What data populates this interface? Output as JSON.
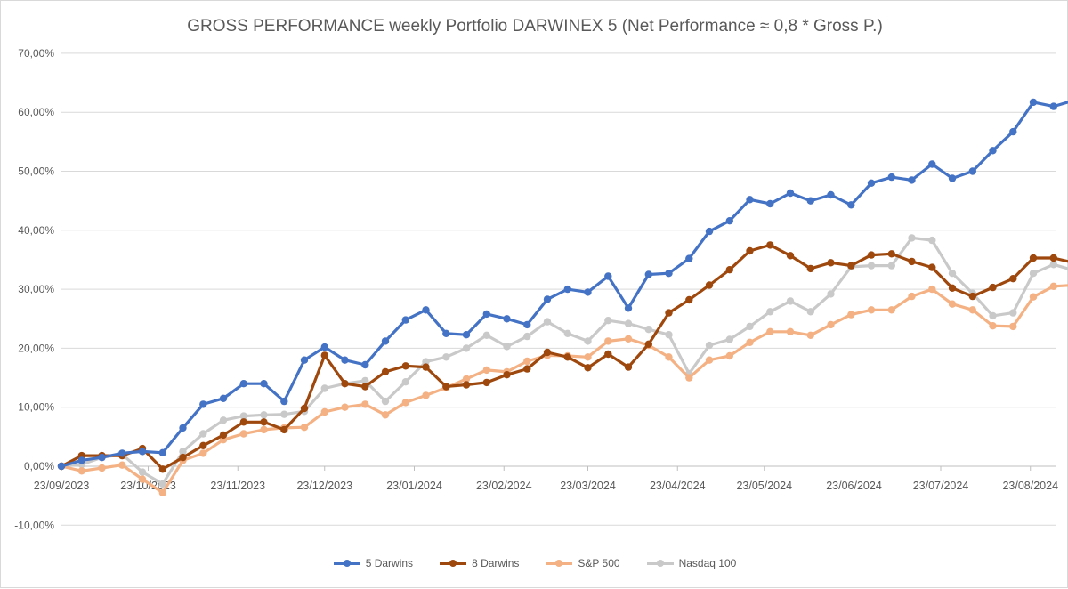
{
  "chart_data": {
    "type": "line",
    "title": "GROSS PERFORMANCE weekly Portfolio DARWINEX 5 (Net Performance ≈ 0,8 * Gross P.)",
    "xlabel": "",
    "ylabel": "",
    "ylim": [
      -0.1,
      0.7
    ],
    "yticks": [
      -0.1,
      0.0,
      0.1,
      0.2,
      0.3,
      0.4,
      0.5,
      0.6,
      0.7
    ],
    "ytick_labels": [
      "-10,00%",
      "0,00%",
      "10,00%",
      "20,00%",
      "30,00%",
      "40,00%",
      "50,00%",
      "60,00%",
      "70,00%"
    ],
    "xtick_labels": [
      "23/09/2023",
      "23/10/2023",
      "23/11/2023",
      "23/12/2023",
      "23/01/2024",
      "23/02/2024",
      "23/03/2024",
      "23/04/2024",
      "23/05/2024",
      "23/06/2024",
      "23/07/2024",
      "23/08/2024"
    ],
    "x_start": "2023-09-23",
    "x_end": "2024-09-01",
    "x_step_days": 7,
    "grid": true,
    "legend_position": "bottom",
    "series": [
      {
        "name": "5 Darwins",
        "color": "#4472c4",
        "values": [
          0.0,
          0.01,
          0.015,
          0.022,
          0.025,
          0.023,
          0.065,
          0.105,
          0.115,
          0.14,
          0.14,
          0.11,
          0.18,
          0.202,
          0.18,
          0.172,
          0.212,
          0.248,
          0.265,
          0.225,
          0.223,
          0.258,
          0.25,
          0.24,
          0.283,
          0.3,
          0.295,
          0.322,
          0.268,
          0.325,
          0.327,
          0.352,
          0.398,
          0.416,
          0.452,
          0.445,
          0.463,
          0.45,
          0.46,
          0.443,
          0.48,
          0.49,
          0.485,
          0.512,
          0.488,
          0.5,
          0.535,
          0.567,
          0.617,
          0.61,
          0.62
        ]
      },
      {
        "name": "8 Darwins",
        "color": "#9e480e",
        "values": [
          0.0,
          0.018,
          0.018,
          0.018,
          0.03,
          -0.005,
          0.015,
          0.035,
          0.053,
          0.075,
          0.075,
          0.062,
          0.098,
          0.188,
          0.14,
          0.135,
          0.16,
          0.17,
          0.168,
          0.135,
          0.138,
          0.142,
          0.155,
          0.165,
          0.193,
          0.185,
          0.167,
          0.19,
          0.168,
          0.207,
          0.26,
          0.282,
          0.307,
          0.333,
          0.365,
          0.375,
          0.357,
          0.335,
          0.345,
          0.34,
          0.358,
          0.36,
          0.347,
          0.337,
          0.302,
          0.288,
          0.303,
          0.318,
          0.353,
          0.353,
          0.345
        ]
      },
      {
        "name": "S&P 500",
        "color": "#f4b183",
        "values": [
          0.0,
          -0.008,
          -0.003,
          0.002,
          -0.022,
          -0.045,
          0.01,
          0.022,
          0.045,
          0.055,
          0.062,
          0.065,
          0.066,
          0.092,
          0.1,
          0.105,
          0.087,
          0.108,
          0.12,
          0.133,
          0.148,
          0.163,
          0.16,
          0.178,
          0.188,
          0.187,
          0.185,
          0.212,
          0.216,
          0.205,
          0.185,
          0.15,
          0.18,
          0.187,
          0.21,
          0.228,
          0.228,
          0.222,
          0.24,
          0.257,
          0.265,
          0.265,
          0.288,
          0.3,
          0.275,
          0.265,
          0.238,
          0.237,
          0.287,
          0.305,
          0.307
        ]
      },
      {
        "name": "Nasdaq 100",
        "color": "#c9c9c9",
        "values": [
          0.0,
          0.003,
          0.015,
          0.02,
          -0.01,
          -0.03,
          0.025,
          0.055,
          0.078,
          0.085,
          0.087,
          0.088,
          0.093,
          0.132,
          0.14,
          0.145,
          0.11,
          0.143,
          0.177,
          0.185,
          0.2,
          0.222,
          0.203,
          0.22,
          0.245,
          0.225,
          0.212,
          0.247,
          0.242,
          0.232,
          0.223,
          0.157,
          0.205,
          0.215,
          0.237,
          0.262,
          0.28,
          0.262,
          0.292,
          0.338,
          0.34,
          0.34,
          0.387,
          0.383,
          0.327,
          0.293,
          0.255,
          0.26,
          0.327,
          0.342,
          0.332
        ]
      }
    ]
  }
}
